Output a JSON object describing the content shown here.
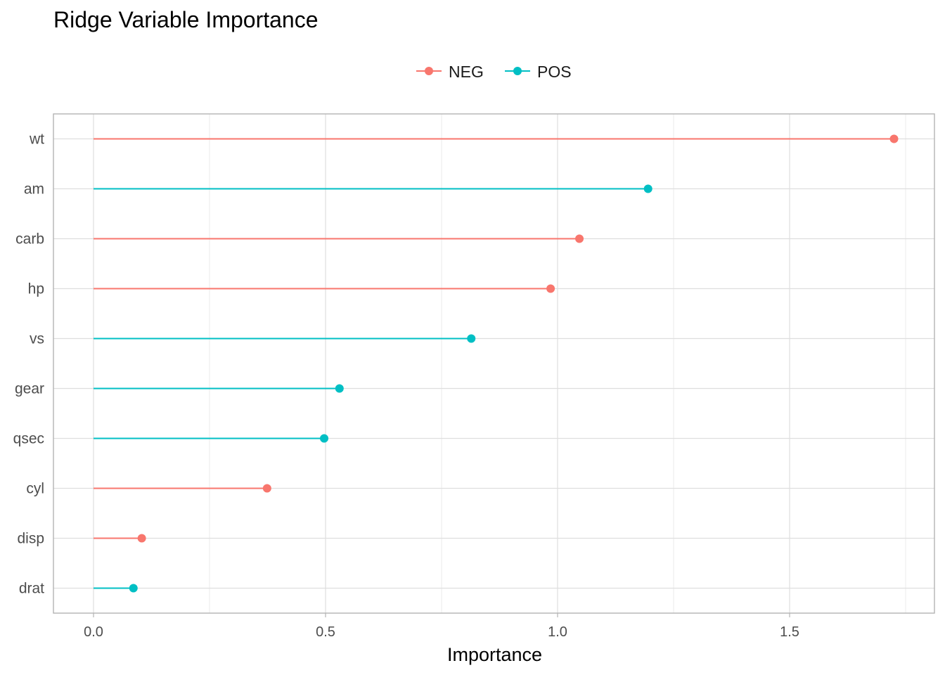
{
  "title": "Ridge Variable Importance",
  "legend": {
    "items": [
      {
        "label": "NEG",
        "color": "#F8766D"
      },
      {
        "label": "POS",
        "color": "#00BFC4"
      }
    ]
  },
  "chart_data": {
    "type": "lollipop",
    "title": "Ridge Variable Importance",
    "xlabel": "Importance",
    "ylabel": "",
    "xlim": [
      -0.09,
      1.82
    ],
    "x_ticks": [
      0.0,
      0.5,
      1.0,
      1.5
    ],
    "x_tick_labels": [
      "0.0",
      "0.5",
      "1.0",
      "1.5"
    ],
    "grid": true,
    "legend_position": "top",
    "series": [
      {
        "name": "NEG",
        "color": "#F8766D"
      },
      {
        "name": "POS",
        "color": "#00BFC4"
      }
    ],
    "points": [
      {
        "variable": "wt",
        "value": 1.725,
        "sign": "NEG"
      },
      {
        "variable": "am",
        "value": 1.195,
        "sign": "POS"
      },
      {
        "variable": "carb",
        "value": 1.047,
        "sign": "NEG"
      },
      {
        "variable": "hp",
        "value": 0.985,
        "sign": "NEG"
      },
      {
        "variable": "vs",
        "value": 0.814,
        "sign": "POS"
      },
      {
        "variable": "gear",
        "value": 0.53,
        "sign": "POS"
      },
      {
        "variable": "qsec",
        "value": 0.497,
        "sign": "POS"
      },
      {
        "variable": "cyl",
        "value": 0.374,
        "sign": "NEG"
      },
      {
        "variable": "disp",
        "value": 0.104,
        "sign": "NEG"
      },
      {
        "variable": "drat",
        "value": 0.086,
        "sign": "POS"
      }
    ]
  }
}
